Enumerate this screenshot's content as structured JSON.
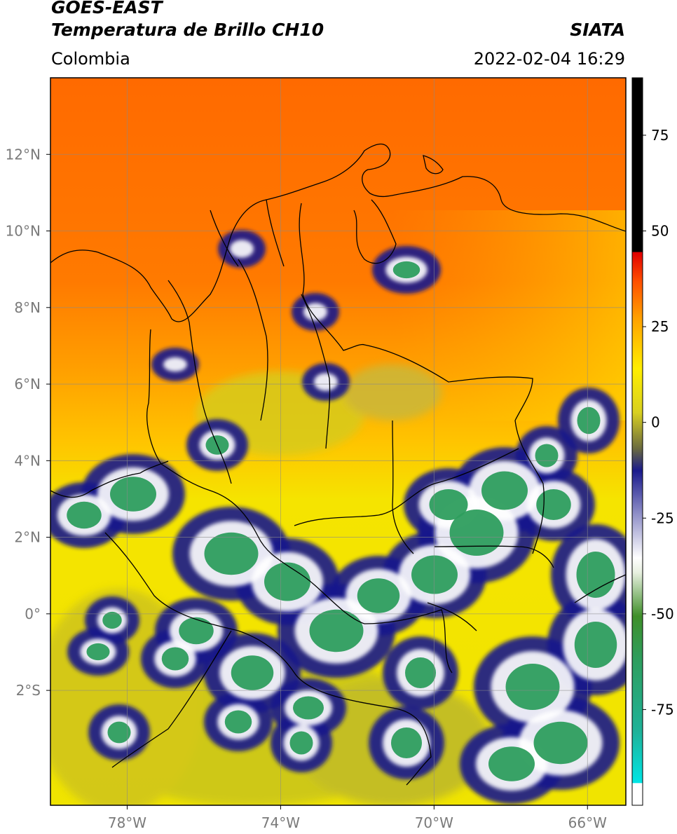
{
  "header": {
    "line1": "GOES-EAST",
    "line2": "Temperatura de Brillo CH10",
    "agency": "SIATA",
    "region": "Colombia",
    "timestamp": "2022-02-04 16:29"
  },
  "map": {
    "lon_range": [
      -80,
      -65
    ],
    "lat_range": [
      -5,
      14
    ],
    "lon_ticks": [
      {
        "value": -78,
        "label": "78°W"
      },
      {
        "value": -74,
        "label": "74°W"
      },
      {
        "value": -70,
        "label": "70°W"
      },
      {
        "value": -66,
        "label": "66°W"
      }
    ],
    "lat_ticks": [
      {
        "value": 12,
        "label": "12°N"
      },
      {
        "value": 10,
        "label": "10°N"
      },
      {
        "value": 8,
        "label": "8°N"
      },
      {
        "value": 6,
        "label": "6°N"
      },
      {
        "value": 4,
        "label": "4°N"
      },
      {
        "value": 2,
        "label": "2°N"
      },
      {
        "value": 0,
        "label": "0°"
      },
      {
        "value": -2,
        "label": "2°S"
      }
    ],
    "grid": true,
    "colors": {
      "warm": "#ff6a00",
      "mid": "#ffb300",
      "cool": "#f2e600",
      "cold_yellow": "#c9c41c",
      "navy": "#1a1a8c",
      "white": "#ffffff",
      "green": "#2e9e5e"
    }
  },
  "colorbar": {
    "range": [
      -100,
      90
    ],
    "ticks": [
      {
        "value": 75,
        "label": "75"
      },
      {
        "value": 50,
        "label": "50"
      },
      {
        "value": 25,
        "label": "25"
      },
      {
        "value": 0,
        "label": "0"
      },
      {
        "value": -25,
        "label": "-25"
      },
      {
        "value": -50,
        "label": "-50"
      },
      {
        "value": -75,
        "label": "-75"
      }
    ]
  }
}
